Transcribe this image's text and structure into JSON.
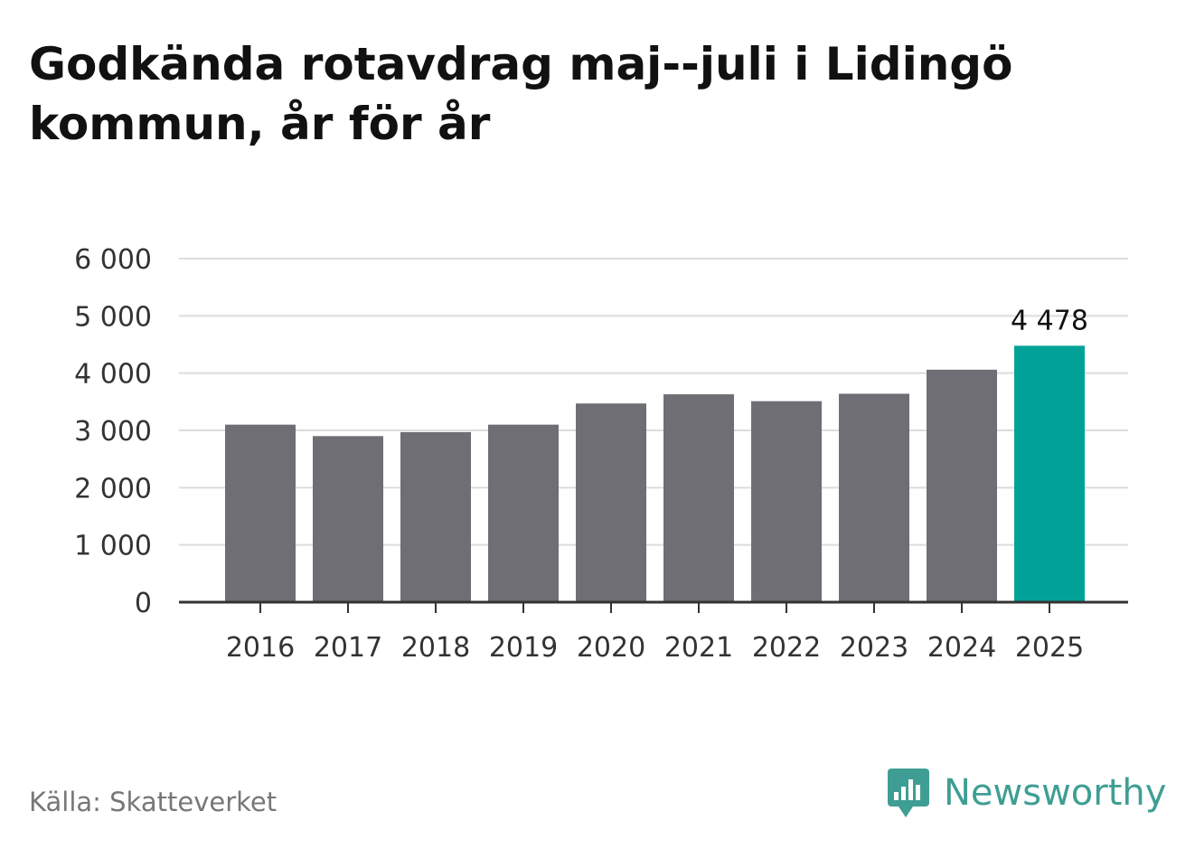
{
  "header": {
    "title": "Godkända rotavdrag maj--juli i Lidingö kommun, år för år"
  },
  "footer": {
    "source": "Källa: Skatteverket",
    "brand": "Newsworthy",
    "brand_icon": "newsworthy-logo-icon"
  },
  "colors": {
    "bar": "#6f6e74",
    "highlight": "#00a297",
    "brand": "#3f9e93"
  },
  "chart_data": {
    "type": "bar",
    "categories": [
      "2016",
      "2017",
      "2018",
      "2019",
      "2020",
      "2021",
      "2022",
      "2023",
      "2024",
      "2025"
    ],
    "values": [
      3100,
      2900,
      2970,
      3100,
      3470,
      3630,
      3510,
      3640,
      4060,
      4478
    ],
    "highlight_index": 9,
    "data_labels": [
      {
        "index": 9,
        "text": "4 478"
      }
    ],
    "y_ticks": [
      {
        "value": 0,
        "label": "0"
      },
      {
        "value": 1000,
        "label": "1 000"
      },
      {
        "value": 2000,
        "label": "2 000"
      },
      {
        "value": 3000,
        "label": "3 000"
      },
      {
        "value": 4000,
        "label": "4 000"
      },
      {
        "value": 5000,
        "label": "5 000"
      },
      {
        "value": 6000,
        "label": "6 000"
      }
    ],
    "ylim": [
      0,
      6000
    ],
    "grid": true,
    "xlabel": "",
    "ylabel": ""
  }
}
